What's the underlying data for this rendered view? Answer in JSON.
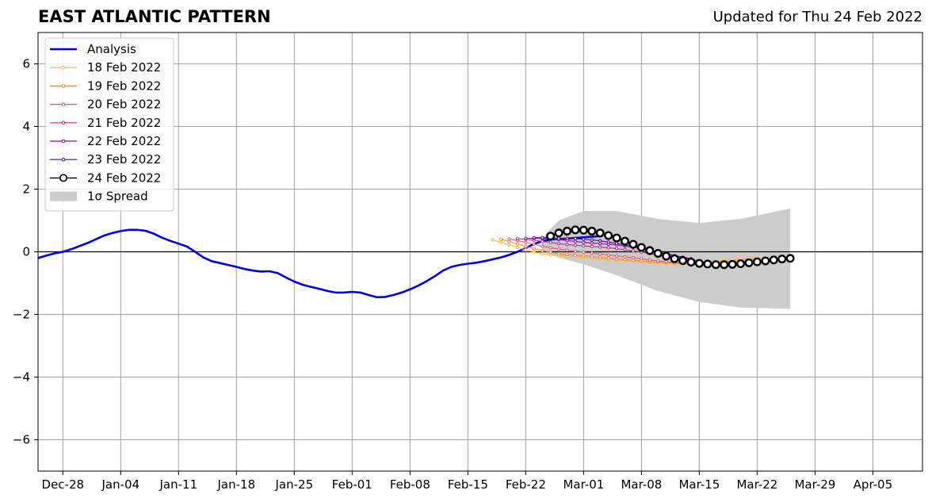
{
  "title": "EAST ATLANTIC PATTERN",
  "updated_text": "Updated for Thu 24 Feb 2022",
  "chart_data": {
    "type": "line",
    "title": "EAST ATLANTIC PATTERN",
    "subtitle": "Updated for Thu 24 Feb 2022",
    "xlabel": "",
    "ylabel": "",
    "xlim": [
      "2021-12-25",
      "2022-04-11"
    ],
    "ylim": [
      -7,
      7
    ],
    "yticks": [
      -6,
      -4,
      -2,
      0,
      2,
      4,
      6
    ],
    "ytick_labels": [
      "−6",
      "−4",
      "−2",
      "0",
      "2",
      "4",
      "6"
    ],
    "xticks": [
      "2021-12-28",
      "2022-01-04",
      "2022-01-11",
      "2022-01-18",
      "2022-01-25",
      "2022-02-01",
      "2022-02-08",
      "2022-02-15",
      "2022-02-22",
      "2022-03-01",
      "2022-03-08",
      "2022-03-15",
      "2022-03-22",
      "2022-03-29",
      "2022-04-05"
    ],
    "xtick_labels": [
      "Dec-28",
      "Jan-04",
      "Jan-11",
      "Jan-18",
      "Jan-25",
      "Feb-01",
      "Feb-08",
      "Feb-15",
      "Feb-22",
      "Mar-01",
      "Mar-08",
      "Mar-15",
      "Mar-22",
      "Mar-29",
      "Apr-05"
    ],
    "grid": true,
    "legend_position": "top-left",
    "analysis": {
      "name": "Analysis",
      "color": "#0000ee",
      "start": "2021-12-25",
      "values": [
        -0.2,
        -0.12,
        -0.05,
        0.0,
        0.08,
        0.18,
        0.28,
        0.4,
        0.52,
        0.6,
        0.66,
        0.7,
        0.7,
        0.67,
        0.58,
        0.45,
        0.35,
        0.26,
        0.17,
        0.0,
        -0.18,
        -0.3,
        -0.36,
        -0.42,
        -0.48,
        -0.55,
        -0.6,
        -0.63,
        -0.62,
        -0.68,
        -0.82,
        -0.95,
        -1.05,
        -1.12,
        -1.18,
        -1.25,
        -1.3,
        -1.3,
        -1.28,
        -1.3,
        -1.38,
        -1.45,
        -1.44,
        -1.38,
        -1.3,
        -1.2,
        -1.08,
        -0.94,
        -0.78,
        -0.6,
        -0.48,
        -0.42,
        -0.38,
        -0.35,
        -0.3,
        -0.24,
        -0.18,
        -0.1,
        0.0,
        0.12,
        0.25,
        0.34,
        0.39,
        0.41,
        0.42,
        0.44,
        0.46,
        0.48,
        0.5
      ]
    },
    "forecasts": [
      {
        "name": "18 Feb 2022",
        "color": "#fdb42f",
        "start": "2022-02-18",
        "values": [
          0.38,
          0.3,
          0.22,
          0.14,
          0.06,
          -0.01,
          -0.06,
          -0.1,
          -0.12,
          -0.14,
          -0.16,
          -0.18,
          -0.2,
          -0.22,
          -0.24,
          -0.26,
          -0.28,
          -0.3,
          -0.32,
          -0.34,
          -0.36,
          -0.37,
          -0.38,
          -0.38,
          -0.36,
          -0.34,
          -0.32,
          -0.3,
          -0.27,
          -0.24,
          -0.22,
          -0.2,
          -0.18
        ]
      },
      {
        "name": "19 Feb 2022",
        "color": "#f48849",
        "start": "2022-02-19",
        "values": [
          0.4,
          0.33,
          0.25,
          0.17,
          0.1,
          0.04,
          -0.02,
          -0.06,
          -0.09,
          -0.11,
          -0.13,
          -0.15,
          -0.18,
          -0.2,
          -0.23,
          -0.25,
          -0.27,
          -0.29,
          -0.31,
          -0.33,
          -0.34,
          -0.35,
          -0.36,
          -0.36,
          -0.36,
          -0.35,
          -0.34,
          -0.32,
          -0.3,
          -0.28,
          -0.26,
          -0.25
        ]
      },
      {
        "name": "20 Feb 2022",
        "color": "#db5c68",
        "start": "2022-02-20",
        "values": [
          0.41,
          0.36,
          0.3,
          0.24,
          0.18,
          0.13,
          0.09,
          0.05,
          0.02,
          -0.01,
          -0.04,
          -0.07,
          -0.1,
          -0.13,
          -0.16,
          -0.19,
          -0.22,
          -0.26,
          -0.29,
          -0.32,
          -0.35,
          -0.37,
          -0.39,
          -0.4,
          -0.41,
          -0.41,
          -0.4
        ]
      },
      {
        "name": "21 Feb 2022",
        "color": "#b83289",
        "start": "2022-02-21",
        "values": [
          0.42,
          0.4,
          0.37,
          0.33,
          0.3,
          0.26,
          0.23,
          0.21,
          0.19,
          0.17,
          0.15,
          0.13,
          0.1,
          0.07,
          0.03,
          -0.01,
          -0.06,
          -0.11,
          -0.16,
          -0.21,
          -0.25,
          -0.29,
          -0.32,
          -0.35,
          -0.37
        ]
      },
      {
        "name": "22 Feb 2022",
        "color": "#8b0aa5",
        "start": "2022-02-22",
        "values": [
          0.43,
          0.43,
          0.42,
          0.41,
          0.39,
          0.36,
          0.33,
          0.3,
          0.28,
          0.26,
          0.24,
          0.22,
          0.18,
          0.14,
          0.09,
          0.04,
          -0.02,
          -0.08,
          -0.14,
          -0.2,
          -0.25,
          -0.29
        ]
      },
      {
        "name": "23 Feb 2022",
        "color": "#5302a3",
        "start": "2022-02-23",
        "values": [
          0.45,
          0.45,
          0.44,
          0.43,
          0.43,
          0.42,
          0.4,
          0.38,
          0.35,
          0.31,
          0.27,
          0.22,
          0.17,
          0.12,
          0.06,
          0.0,
          -0.06,
          -0.12,
          -0.17,
          -0.22
        ]
      },
      {
        "name": "24 Feb 2022",
        "color": "#000000",
        "start": "2022-02-25",
        "values": [
          0.5,
          0.6,
          0.66,
          0.7,
          0.69,
          0.66,
          0.6,
          0.52,
          0.44,
          0.34,
          0.24,
          0.14,
          0.04,
          -0.05,
          -0.14,
          -0.22,
          -0.28,
          -0.33,
          -0.37,
          -0.39,
          -0.41,
          -0.41,
          -0.4,
          -0.38,
          -0.35,
          -0.32,
          -0.29,
          -0.26,
          -0.23,
          -0.21
        ]
      }
    ],
    "spread": {
      "name": "1σ Spread",
      "color": "#cccccc",
      "x": [
        "2022-02-24",
        "2022-02-26",
        "2022-03-01",
        "2022-03-05",
        "2022-03-10",
        "2022-03-15",
        "2022-03-20",
        "2022-03-26"
      ],
      "upper": [
        0.45,
        1.0,
        1.3,
        1.3,
        1.05,
        0.92,
        1.05,
        1.38
      ],
      "lower": [
        0.0,
        -0.18,
        -0.4,
        -0.75,
        -1.25,
        -1.6,
        -1.78,
        -1.82
      ]
    },
    "legend": [
      {
        "label": "Analysis",
        "kind": "thick-line",
        "color": "#0000ee"
      },
      {
        "label": "18 Feb 2022",
        "kind": "dot-line",
        "color": "#fdb42f"
      },
      {
        "label": "19 Feb 2022",
        "kind": "dot-line",
        "color": "#f48849"
      },
      {
        "label": "20 Feb 2022",
        "kind": "dot-line",
        "color": "#db5c68"
      },
      {
        "label": "21 Feb 2022",
        "kind": "dot-line",
        "color": "#b83289"
      },
      {
        "label": "22 Feb 2022",
        "kind": "dot-line",
        "color": "#8b0aa5"
      },
      {
        "label": "23 Feb 2022",
        "kind": "dot-line",
        "color": "#5302a3"
      },
      {
        "label": "24 Feb 2022",
        "kind": "circle-line",
        "color": "#000000"
      },
      {
        "label": "1σ Spread",
        "kind": "patch",
        "color": "#cccccc"
      }
    ]
  }
}
